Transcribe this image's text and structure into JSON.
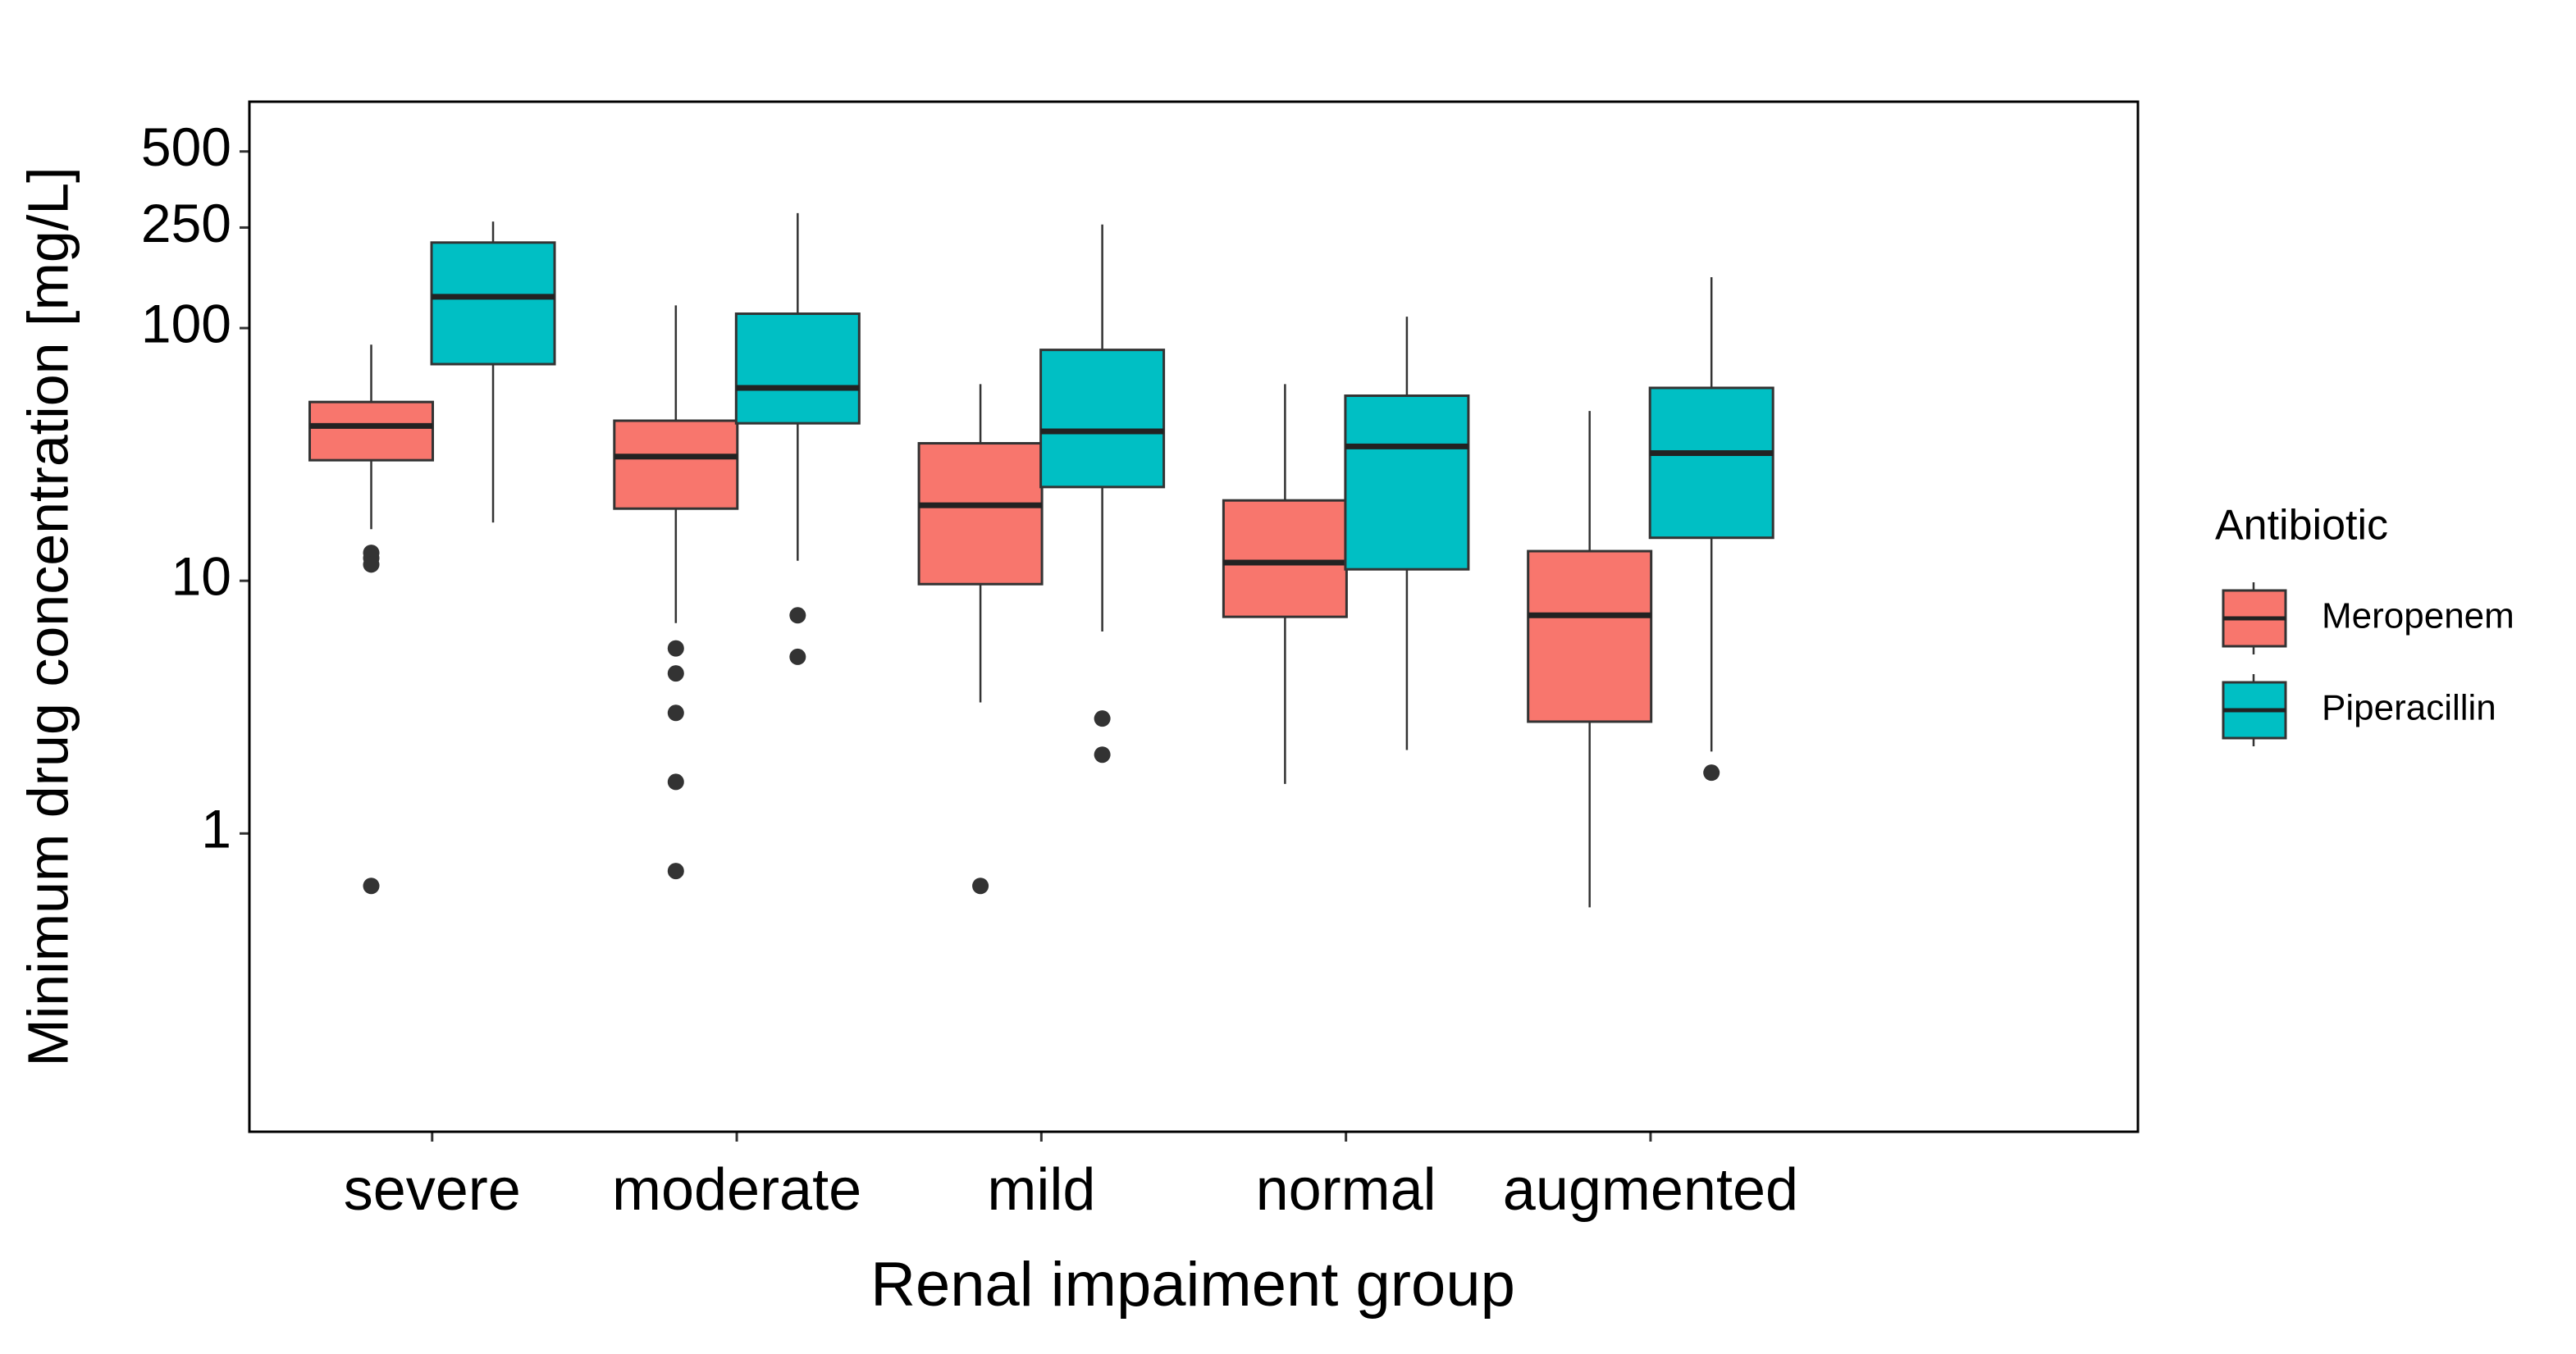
{
  "chart_data": {
    "type": "boxplot",
    "x_label": "Renal impaiment group",
    "y_label": "Minimum drug concentration [mg/L]",
    "categories": [
      "severe",
      "moderate",
      "mild",
      "normal",
      "augmented"
    ],
    "yscale": "log",
    "ylim": [
      0.066,
      787
    ],
    "yticks": [
      1,
      10,
      100,
      250,
      500
    ],
    "legend_title": "Antibiotic",
    "legend_position": "right",
    "grid": false,
    "series": [
      {
        "name": "Meropenem",
        "color": "#F8766D",
        "values": [
          {
            "whislo": 16,
            "q1": 30,
            "med": 41,
            "q3": 51,
            "whishi": 86,
            "fliers": [
              12.9,
              12.3,
              11.6,
              0.62
            ]
          },
          {
            "whislo": 6.8,
            "q1": 19.3,
            "med": 31,
            "q3": 43,
            "whishi": 123,
            "fliers": [
              5.4,
              4.3,
              3.0,
              1.6,
              0.71
            ]
          },
          {
            "whislo": 3.3,
            "q1": 9.7,
            "med": 19.9,
            "q3": 35,
            "whishi": 60,
            "fliers": [
              0.62
            ]
          },
          {
            "whislo": 1.57,
            "q1": 7.2,
            "med": 11.8,
            "q3": 20.8,
            "whishi": 60,
            "fliers": []
          },
          {
            "whislo": 0.51,
            "q1": 2.77,
            "med": 7.3,
            "q3": 13.1,
            "whishi": 47,
            "fliers": []
          }
        ]
      },
      {
        "name": "Piperacillin",
        "color": "#00BFC4",
        "values": [
          {
            "whislo": 17,
            "q1": 72,
            "med": 133,
            "q3": 218,
            "whishi": 264,
            "fliers": []
          },
          {
            "whislo": 12,
            "q1": 42,
            "med": 58,
            "q3": 114,
            "whishi": 285,
            "fliers": [
              7.3,
              5.0
            ]
          },
          {
            "whislo": 6.3,
            "q1": 23.5,
            "med": 39,
            "q3": 82,
            "whishi": 257,
            "fliers": [
              2.85,
              2.05
            ]
          },
          {
            "whislo": 2.14,
            "q1": 11.1,
            "med": 34,
            "q3": 54,
            "whishi": 111,
            "fliers": []
          },
          {
            "whislo": 2.11,
            "q1": 14.8,
            "med": 32,
            "q3": 58,
            "whishi": 159,
            "fliers": [
              1.74
            ]
          }
        ]
      }
    ]
  }
}
